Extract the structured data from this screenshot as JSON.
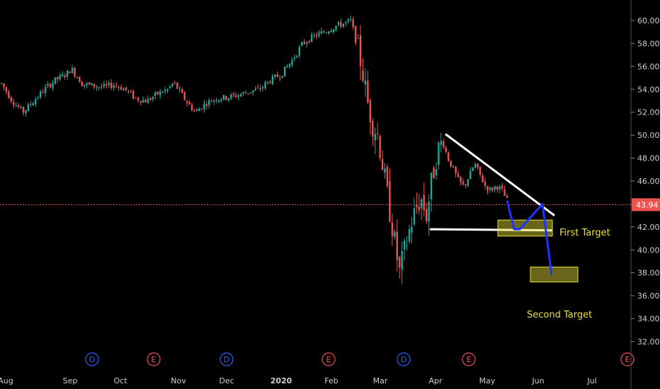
{
  "chart_data": {
    "type": "candlestick",
    "y_axis": {
      "min": 32,
      "max": 61.5,
      "ticks": [
        32,
        34,
        36,
        38,
        40,
        42,
        44,
        46,
        48,
        50,
        52,
        54,
        56,
        58,
        60
      ],
      "side": "right"
    },
    "x_axis": {
      "labels": [
        "Aug",
        "Sep",
        "Oct",
        "Nov",
        "Dec",
        "2020",
        "Feb",
        "Mar",
        "Apr",
        "May",
        "Jun",
        "Jul"
      ]
    },
    "current_price": {
      "value": 43.94,
      "label": "43.94"
    },
    "colors": {
      "up": "#26a69a",
      "down": "#ef5350",
      "background": "#000000",
      "trendline": "#ffffff",
      "projection": "#1e32ff",
      "target_box": "#e8e23c",
      "price_line": "#ef5350",
      "dividend": "#2962ff",
      "earnings": "#ef5350"
    },
    "events": [
      {
        "type": "D",
        "date": "Sep",
        "color": "#2962ff"
      },
      {
        "type": "E",
        "date": "Oct",
        "color": "#ef5350"
      },
      {
        "type": "D",
        "date": "Dec",
        "color": "#2962ff"
      },
      {
        "type": "E",
        "date": "Feb",
        "color": "#ef5350"
      },
      {
        "type": "D",
        "date": "Mar",
        "color": "#2962ff"
      },
      {
        "type": "E",
        "date": "Apr",
        "color": "#ef5350"
      },
      {
        "type": "E",
        "date": "Jul",
        "color": "#ef5350"
      }
    ],
    "price_path": [
      [
        0,
        54.5
      ],
      [
        2,
        53.0
      ],
      [
        4,
        52.0
      ],
      [
        6,
        53.0
      ],
      [
        8,
        54.0
      ],
      [
        10,
        54.8
      ],
      [
        12,
        55.3
      ],
      [
        13,
        55.8
      ],
      [
        15,
        54.5
      ],
      [
        17,
        54.3
      ],
      [
        19,
        54.2
      ],
      [
        21,
        54.4
      ],
      [
        23,
        54.0
      ],
      [
        25,
        53.2
      ],
      [
        27,
        53.0
      ],
      [
        29,
        53.6
      ],
      [
        31,
        54.0
      ],
      [
        32,
        54.6
      ],
      [
        34,
        53.2
      ],
      [
        36,
        52.0
      ],
      [
        38,
        52.8
      ],
      [
        40,
        53.2
      ],
      [
        42,
        53.3
      ],
      [
        44,
        53.5
      ],
      [
        46,
        53.8
      ],
      [
        48,
        54.0
      ],
      [
        50,
        54.8
      ],
      [
        52,
        55.3
      ],
      [
        54,
        56.5
      ],
      [
        56,
        58.0
      ],
      [
        58,
        58.6
      ],
      [
        60,
        59.0
      ],
      [
        62,
        59.5
      ],
      [
        64,
        59.8
      ],
      [
        65,
        60.0
      ],
      [
        66,
        58.0
      ],
      [
        67,
        56.0
      ],
      [
        68,
        53.0
      ],
      [
        69,
        51.0
      ],
      [
        70,
        50.0
      ],
      [
        71,
        47.0
      ],
      [
        72,
        44.0
      ],
      [
        73,
        41.0
      ],
      [
        74,
        38.0
      ],
      [
        75,
        40.0
      ],
      [
        76,
        42.0
      ],
      [
        77,
        43.5
      ],
      [
        78,
        44.5
      ],
      [
        79,
        43.0
      ],
      [
        80,
        46.0
      ],
      [
        81,
        48.5
      ],
      [
        82,
        49.5
      ],
      [
        83,
        48.0
      ],
      [
        84,
        47.0
      ],
      [
        85,
        46.0
      ],
      [
        86,
        45.5
      ],
      [
        87,
        46.5
      ],
      [
        88,
        47.5
      ],
      [
        89,
        46.5
      ],
      [
        90,
        45.5
      ],
      [
        91,
        45.2
      ],
      [
        92,
        45.6
      ],
      [
        93,
        45.2
      ],
      [
        94,
        44.3
      ]
    ],
    "annotations": {
      "resistance_line": {
        "from": [
          1,
          50.0
        ],
        "to": [
          1,
          43.0
        ]
      },
      "support_level": 41.8,
      "projection_path": [
        [
          44.3
        ],
        [
          41.8
        ],
        [
          43.9
        ],
        [
          37.8
        ]
      ],
      "first_target": {
        "label": "First Target",
        "y_top": 42.6,
        "y_bottom": 41.2
      },
      "second_target": {
        "label": "Second Target",
        "y_top": 38.5,
        "y_bottom": 37.2
      }
    }
  }
}
